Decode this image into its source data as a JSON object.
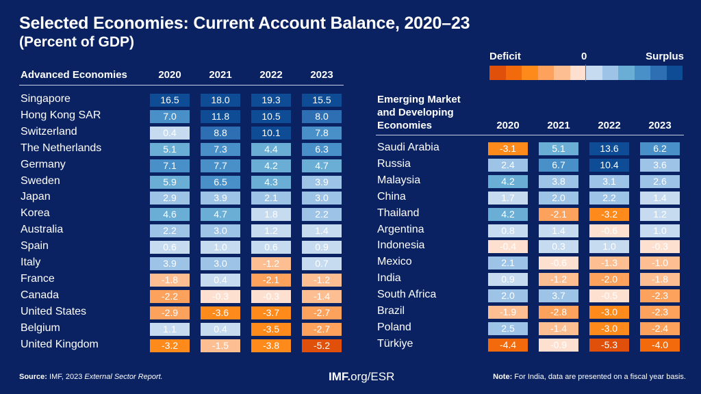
{
  "chart_data": {
    "type": "heatmap",
    "title": "Selected Economies: Current Account Balance, 2020–23",
    "subtitle": "(Percent of GDP)",
    "legend": {
      "left": "Deficit",
      "center": "0",
      "right": "Surplus",
      "placement": "top-right",
      "deficit_colors": [
        "#e0500a",
        "#f26a0c",
        "#fd8a1a",
        "#fca25d",
        "#fdbe92",
        "#fde0cf"
      ],
      "surplus_colors": [
        "#c6dbef",
        "#9dc3e6",
        "#6aaed6",
        "#4a90c8",
        "#2e6fb3",
        "#0f4c96"
      ]
    },
    "years": [
      "2020",
      "2021",
      "2022",
      "2023"
    ],
    "tables": [
      {
        "heading": "Advanced Economies",
        "rows": [
          {
            "country": "Singapore",
            "values": [
              "16.5",
              "18.0",
              "19.3",
              "15.5"
            ]
          },
          {
            "country": "Hong Kong SAR",
            "values": [
              "7.0",
              "11.8",
              "10.5",
              "8.0"
            ]
          },
          {
            "country": "Switzerland",
            "values": [
              "0.4",
              "8.8",
              "10.1",
              "7.8"
            ]
          },
          {
            "country": "The Netherlands",
            "values": [
              "5.1",
              "7.3",
              "4.4",
              "6.3"
            ]
          },
          {
            "country": "Germany",
            "values": [
              "7.1",
              "7.7",
              "4.2",
              "4.7"
            ]
          },
          {
            "country": "Sweden",
            "values": [
              "5.9",
              "6.5",
              "4.3",
              "3.9"
            ]
          },
          {
            "country": "Japan",
            "values": [
              "2.9",
              "3.9",
              "2.1",
              "3.0"
            ]
          },
          {
            "country": "Korea",
            "values": [
              "4.6",
              "4.7",
              "1.8",
              "2.2"
            ]
          },
          {
            "country": "Australia",
            "values": [
              "2.2",
              "3.0",
              "1.2",
              "1.4"
            ]
          },
          {
            "country": "Spain",
            "values": [
              "0.6",
              "1.0",
              "0.6",
              "0.9"
            ]
          },
          {
            "country": "Italy",
            "values": [
              "3.9",
              "3.0",
              "-1.2",
              "0.7"
            ]
          },
          {
            "country": "France",
            "values": [
              "-1.8",
              "0.4",
              "-2.1",
              "-1.2"
            ]
          },
          {
            "country": "Canada",
            "values": [
              "-2.2",
              "-0.3",
              "-0.3",
              "-1.4"
            ]
          },
          {
            "country": "United States",
            "values": [
              "-2.9",
              "-3.6",
              "-3.7",
              "-2.7"
            ]
          },
          {
            "country": "Belgium",
            "values": [
              "1.1",
              "0.4",
              "-3.5",
              "-2.7"
            ]
          },
          {
            "country": "United Kingdom",
            "values": [
              "-3.2",
              "-1.5",
              "-3.8",
              "-5.2"
            ]
          }
        ]
      },
      {
        "heading": "Emerging Market and Developing Economies",
        "heading_lines": [
          "Emerging Market",
          "and Developing",
          "Economies"
        ],
        "rows": [
          {
            "country": "Saudi Arabia",
            "values": [
              "-3.1",
              "5.1",
              "13.6",
              "6.2"
            ]
          },
          {
            "country": "Russia",
            "values": [
              "2.4",
              "6.7",
              "10.4",
              "3.6"
            ]
          },
          {
            "country": "Malaysia",
            "values": [
              "4.2",
              "3.8",
              "3.1",
              "2.6"
            ]
          },
          {
            "country": "China",
            "values": [
              "1.7",
              "2.0",
              "2.2",
              "1.4"
            ]
          },
          {
            "country": "Thailand",
            "values": [
              "4.2",
              "-2.1",
              "-3.2",
              "1.2"
            ]
          },
          {
            "country": "Argentina",
            "values": [
              "0.8",
              "1.4",
              "-0.6",
              "1.0"
            ]
          },
          {
            "country": "Indonesia",
            "values": [
              "-0.4",
              "0.3",
              "1.0",
              "-0.3"
            ]
          },
          {
            "country": "Mexico",
            "values": [
              "2.1",
              "-0.6",
              "-1.3",
              "-1.0"
            ]
          },
          {
            "country": "India",
            "values": [
              "0.9",
              "-1.2",
              "-2.0",
              "-1.8"
            ]
          },
          {
            "country": "South Africa",
            "values": [
              "2.0",
              "3.7",
              "-0.5",
              "-2.3"
            ]
          },
          {
            "country": "Brazil",
            "values": [
              "-1.9",
              "-2.8",
              "-3.0",
              "-2.3"
            ]
          },
          {
            "country": "Poland",
            "values": [
              "2.5",
              "-1.4",
              "-3.0",
              "-2.4"
            ]
          },
          {
            "country": "Türkiye",
            "values": [
              "-4.4",
              "-0.9",
              "-5.3",
              "-4.0"
            ]
          }
        ]
      }
    ]
  },
  "footer": {
    "source_label": "Source:",
    "source_text": "IMF, 2023",
    "source_italic": "External Sector Report.",
    "url_bold": "IMF.",
    "url_rest": "org/ESR",
    "note_label": "Note:",
    "note_text": "For India, data are presented on a fiscal year basis."
  }
}
